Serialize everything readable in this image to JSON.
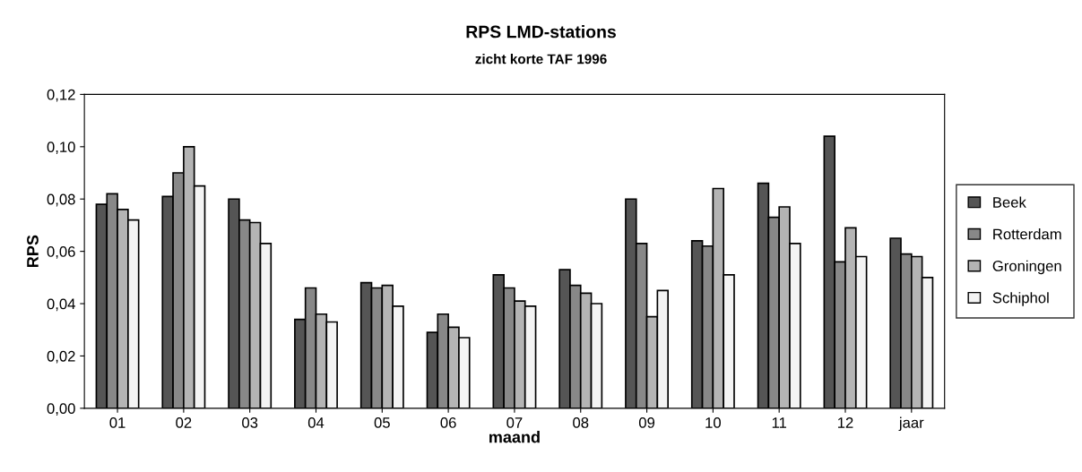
{
  "chart_data": {
    "type": "bar",
    "title": "RPS LMD-stations",
    "subtitle": "zicht korte TAF 1996",
    "xlabel": "maand",
    "ylabel": "RPS",
    "categories": [
      "01",
      "02",
      "03",
      "04",
      "05",
      "06",
      "07",
      "08",
      "09",
      "10",
      "11",
      "12",
      "jaar"
    ],
    "series": [
      {
        "name": "Beek",
        "color": "#555555",
        "values": [
          0.078,
          0.081,
          0.08,
          0.034,
          0.048,
          0.029,
          0.051,
          0.053,
          0.08,
          0.064,
          0.086,
          0.104,
          0.065
        ]
      },
      {
        "name": "Rotterdam",
        "color": "#888888",
        "values": [
          0.082,
          0.09,
          0.072,
          0.046,
          0.046,
          0.036,
          0.046,
          0.047,
          0.063,
          0.062,
          0.073,
          0.056,
          0.059
        ]
      },
      {
        "name": "Groningen",
        "color": "#b4b4b4",
        "values": [
          0.076,
          0.1,
          0.071,
          0.036,
          0.047,
          0.031,
          0.041,
          0.044,
          0.035,
          0.084,
          0.077,
          0.069,
          0.058
        ]
      },
      {
        "name": "Schiphol",
        "color": "#f4f4f4",
        "values": [
          0.072,
          0.085,
          0.063,
          0.033,
          0.039,
          0.027,
          0.039,
          0.04,
          0.045,
          0.051,
          0.063,
          0.058,
          0.05
        ]
      }
    ],
    "ylim": [
      0,
      0.12
    ],
    "yticks": [
      {
        "value": 0,
        "label": "0,00"
      },
      {
        "value": 0.02,
        "label": "0,02"
      },
      {
        "value": 0.04,
        "label": "0,04"
      },
      {
        "value": 0.06,
        "label": "0,06"
      },
      {
        "value": 0.08,
        "label": "0,08"
      },
      {
        "value": 0.1,
        "label": "0,10"
      },
      {
        "value": 0.12,
        "label": "0,12"
      }
    ],
    "grid": false,
    "legend": "right"
  }
}
